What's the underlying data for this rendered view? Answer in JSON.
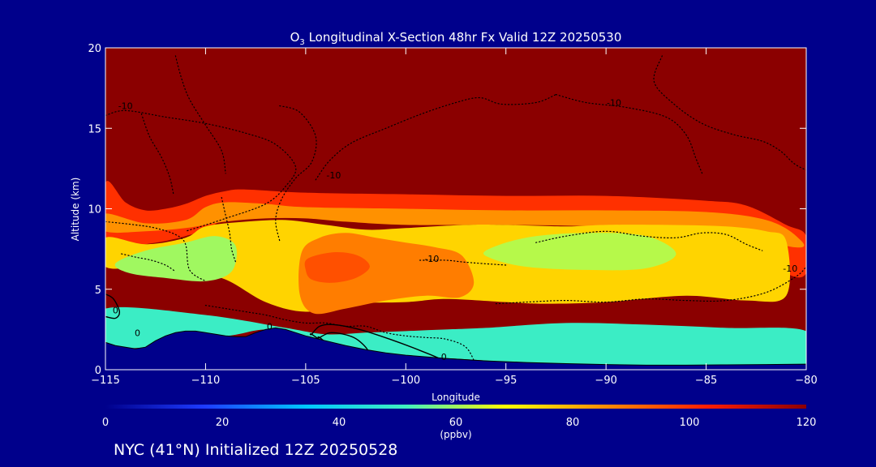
{
  "chart_data": {
    "type": "heatmap",
    "title": "O3 Longitudinal X-Section 48hr  Fx Valid 12Z 20250530",
    "title_species": "O",
    "title_subscript": "3",
    "title_rest": " Longitudinal X-Section 48hr  Fx Valid 12Z 20250530",
    "xlabel": "Longitude",
    "ylabel": "Altitude (km)",
    "xlim": [
      -115,
      -80
    ],
    "ylim": [
      0,
      20
    ],
    "xticks": [
      "-115",
      "-110",
      "-105",
      "-100",
      "-95",
      "-90",
      "-85",
      "-80"
    ],
    "xtick_values": [
      -115,
      -110,
      -105,
      -100,
      -95,
      -90,
      -85,
      -80
    ],
    "yticks": [
      "0",
      "5",
      "10",
      "15",
      "20"
    ],
    "ytick_values": [
      0,
      5,
      10,
      15,
      20
    ],
    "colorbar": {
      "ticks": [
        "0",
        "20",
        "40",
        "60",
        "80",
        "100",
        "120"
      ],
      "values": [
        0,
        20,
        40,
        60,
        80,
        100,
        120
      ],
      "unit": "(ppbv)",
      "colors": [
        "#00008b",
        "#1e3cff",
        "#00c8ff",
        "#40f0c0",
        "#ffff00",
        "#ff8c00",
        "#ff1e00",
        "#8b0000"
      ]
    },
    "background_value": 120,
    "terrain": {
      "x": [
        -115,
        -114.5,
        -114,
        -113.5,
        -113,
        -112.5,
        -112,
        -111.5,
        -111,
        -110.5,
        -110,
        -109.5,
        -109,
        -108.5,
        -108,
        -107.5,
        -107,
        -106.5,
        -106,
        -105.5,
        -105,
        -104,
        -103,
        -102,
        -101,
        -100,
        -98,
        -96,
        -94,
        -92,
        -90,
        -88,
        -86,
        -84,
        -82,
        -80
      ],
      "z": [
        1.7,
        1.5,
        1.4,
        1.3,
        1.4,
        1.8,
        2.1,
        2.3,
        2.4,
        2.4,
        2.3,
        2.2,
        2.1,
        2.05,
        2.05,
        2.3,
        2.5,
        2.6,
        2.5,
        2.3,
        2.1,
        1.8,
        1.5,
        1.25,
        1.05,
        0.9,
        0.7,
        0.55,
        0.45,
        0.38,
        0.32,
        0.28,
        0.28,
        0.3,
        0.32,
        0.35
      ]
    },
    "regions": [
      {
        "name": "tropopause-transition",
        "value": 100,
        "x": [
          -115,
          -114,
          -113,
          -112,
          -111,
          -110,
          -109,
          -108,
          -105,
          -100,
          -95,
          -90,
          -85,
          -83,
          -81,
          -80,
          -80,
          -81,
          -83,
          -85,
          -90,
          -95,
          -100,
          -105,
          -108,
          -109,
          -110,
          -111,
          -112,
          -113,
          -114,
          -115
        ],
        "y": [
          11.6,
          10.4,
          9.9,
          10.0,
          10.3,
          10.8,
          11.1,
          11.2,
          11.0,
          10.9,
          10.8,
          10.8,
          10.5,
          10.2,
          9.0,
          8.3,
          6.0,
          6.0,
          8.0,
          9.2,
          9.4,
          9.4,
          9.3,
          9.5,
          9.7,
          9.4,
          8.7,
          8.3,
          8.0,
          7.8,
          7.6,
          7.0
        ]
      },
      {
        "name": "upper-orange-band",
        "value": 85,
        "x": [
          -115,
          -113,
          -111,
          -110,
          -109,
          -107,
          -105,
          -100,
          -95,
          -90,
          -85,
          -82,
          -80.5,
          -80.5,
          -85,
          -90,
          -95,
          -100,
          -103,
          -105,
          -107,
          -109,
          -111,
          -113,
          -115
        ],
        "y": [
          9.7,
          9.1,
          9.3,
          10.1,
          10.4,
          10.3,
          10.1,
          10.0,
          9.9,
          9.9,
          9.8,
          9.3,
          8.3,
          7.6,
          8.7,
          8.9,
          9.0,
          9.0,
          9.2,
          9.4,
          9.4,
          9.2,
          8.8,
          8.6,
          8.6
        ]
      },
      {
        "name": "mid-yellow-layer",
        "value": 75,
        "x": [
          -115,
          -113,
          -111,
          -110,
          -108,
          -106,
          -104,
          -102,
          -100,
          -97,
          -95,
          -92,
          -90,
          -87,
          -84,
          -82,
          -81,
          -81,
          -83,
          -86,
          -90,
          -93,
          -95,
          -98,
          -100,
          -103,
          -105,
          -107,
          -109,
          -111,
          -113,
          -115
        ],
        "y": [
          8.2,
          7.8,
          8.2,
          8.9,
          9.2,
          9.3,
          9.0,
          8.7,
          8.8,
          9.0,
          9.0,
          8.9,
          9.0,
          9.0,
          8.9,
          8.6,
          8.0,
          4.6,
          4.3,
          4.6,
          4.2,
          4.1,
          4.2,
          4.4,
          4.2,
          4.1,
          3.6,
          4.2,
          5.6,
          6.2,
          6.4,
          6.4
        ]
      },
      {
        "name": "ozone-plume-orange",
        "value": 88,
        "x": [
          -105.2,
          -104.3,
          -103,
          -101.5,
          -100,
          -98.5,
          -97.2,
          -96.6,
          -97.3,
          -99,
          -101,
          -103,
          -104.6,
          -105.3
        ],
        "y": [
          7.3,
          8.2,
          8.5,
          8.2,
          7.9,
          7.6,
          7.1,
          5.4,
          4.5,
          4.6,
          4.3,
          3.8,
          3.5,
          4.7
        ]
      },
      {
        "name": "ozone-plume-core",
        "value": 95,
        "x": [
          -104.9,
          -103.6,
          -102.4,
          -101.8,
          -102.5,
          -103.7,
          -104.7,
          -105
        ],
        "y": [
          6.9,
          7.3,
          7.1,
          6.4,
          5.7,
          5.4,
          5.6,
          6.2
        ]
      },
      {
        "name": "green-patch-left",
        "value": 60,
        "x": [
          -114.5,
          -113,
          -111,
          -109.5,
          -108.5,
          -108.7,
          -110,
          -112,
          -113.8
        ],
        "y": [
          6.6,
          7.4,
          7.9,
          8.3,
          7.7,
          6.1,
          5.5,
          5.7,
          6.0
        ]
      },
      {
        "name": "green-patch-right",
        "value": 62,
        "x": [
          -96,
          -94,
          -91,
          -88,
          -86.5,
          -88,
          -91,
          -94,
          -95.7
        ],
        "y": [
          7.4,
          8.2,
          8.5,
          8.3,
          7.2,
          6.3,
          6.2,
          6.4,
          6.9
        ]
      },
      {
        "name": "cyan-boundary-layer",
        "value": 50,
        "x": [
          -80,
          -84,
          -88,
          -92,
          -96,
          -98,
          -100,
          -102,
          -104,
          -106,
          -110,
          -115,
          -115,
          -113,
          -111,
          -109,
          -107,
          -105,
          -103,
          -101,
          -99,
          -97,
          -95,
          -93,
          -91,
          -89,
          -87,
          -85,
          -83,
          -81,
          -80
        ],
        "y": [
          2.4,
          2.6,
          2.8,
          2.9,
          2.6,
          2.5,
          2.4,
          2.3,
          2.2,
          2.6,
          3.4,
          3.8,
          1.7,
          1.4,
          2.4,
          2.1,
          2.5,
          2.1,
          1.5,
          1.05,
          0.8,
          0.65,
          0.5,
          0.42,
          0.35,
          0.3,
          0.28,
          0.28,
          0.3,
          0.32,
          0.35
        ]
      }
    ],
    "contours": [
      {
        "level": "0",
        "style": "solid",
        "x": [
          -104.7,
          -104.3,
          -103.6,
          -102.3,
          -100.8,
          -99.3,
          -98.2,
          -98.9,
          -100.8,
          -102.6,
          -104,
          -104.7
        ],
        "y": [
          2.2,
          2.7,
          2.8,
          2.5,
          1.9,
          1.2,
          0.6,
          0.55,
          0.8,
          1.3,
          1.7,
          2.2
        ]
      },
      {
        "level": "0",
        "style": "solid",
        "x": [
          -104.3,
          -103.7,
          -102.6,
          -101.9,
          -102.3,
          -103.6,
          -104.3
        ],
        "y": [
          2.0,
          2.3,
          2.0,
          1.2,
          0.95,
          1.4,
          2.0
        ]
      },
      {
        "level": "0",
        "style": "solid",
        "x": [
          -115,
          -114.6,
          -114.3,
          -114.5,
          -115
        ],
        "y": [
          4.7,
          4.4,
          3.6,
          3.2,
          3.3
        ]
      },
      {
        "level": "-10",
        "style": "dotted",
        "x": [
          -115,
          -114,
          -112,
          -110,
          -108,
          -106.5,
          -105.5,
          -106,
          -107,
          -109,
          -111
        ],
        "y": [
          15.8,
          16.1,
          15.7,
          15.3,
          14.7,
          14.0,
          12.6,
          11.4,
          10.3,
          9.4,
          8.6
        ]
      },
      {
        "level": "-10",
        "style": "dotted",
        "x": [
          -106.3,
          -105.3,
          -104.5,
          -104.7,
          -105.5,
          -106.2,
          -106.5,
          -106.3
        ],
        "y": [
          16.4,
          16.0,
          14.5,
          12.9,
          11.9,
          10.6,
          9.3,
          8.0
        ]
      },
      {
        "level": "-10",
        "style": "dotted",
        "x": [
          -111.5,
          -111.2,
          -110.8,
          -110,
          -109.2,
          -109
        ],
        "y": [
          19.5,
          18.1,
          16.8,
          15.2,
          13.6,
          12.2
        ]
      },
      {
        "level": "-10",
        "style": "dotted",
        "x": [
          -113.2,
          -112.8,
          -112.2,
          -111.8,
          -111.6
        ],
        "y": [
          15.9,
          14.5,
          13.2,
          12.0,
          10.9
        ]
      },
      {
        "level": "-10",
        "style": "dotted",
        "x": [
          -104.5,
          -103.8,
          -102.7,
          -101,
          -99.2,
          -97.5,
          -96.3,
          -95.2,
          -93.5,
          -92.5
        ],
        "y": [
          11.8,
          13.0,
          14.1,
          15.0,
          15.9,
          16.6,
          16.9,
          16.5,
          16.6,
          17.1
        ]
      },
      {
        "level": "-10",
        "style": "dotted",
        "x": [
          -92.5,
          -91,
          -89,
          -87,
          -86,
          -85.5,
          -85.2
        ],
        "y": [
          17.1,
          16.6,
          16.3,
          15.7,
          14.6,
          13.1,
          12.2
        ]
      },
      {
        "level": "-10",
        "style": "dotted",
        "x": [
          -87.2,
          -87.6,
          -86.6,
          -85.2,
          -83.6,
          -82.2,
          -81.3,
          -80.6,
          -80
        ],
        "y": [
          19.5,
          17.9,
          16.5,
          15.3,
          14.6,
          14.2,
          13.6,
          12.8,
          12.4
        ]
      },
      {
        "level": "-10",
        "style": "dotted",
        "x": [
          -93.5,
          -92,
          -90,
          -88.2,
          -86.5,
          -85.2,
          -84,
          -83,
          -82.2
        ],
        "y": [
          7.9,
          8.3,
          8.6,
          8.3,
          8.2,
          8.5,
          8.4,
          7.8,
          7.4
        ]
      },
      {
        "level": "-10",
        "style": "dotted",
        "x": [
          -114.2,
          -113.5,
          -112.7,
          -112,
          -111.5
        ],
        "y": [
          7.2,
          7.0,
          6.8,
          6.5,
          6.1
        ]
      },
      {
        "level": "-10",
        "style": "dotted",
        "x": [
          -109.2,
          -109,
          -108.8,
          -108.7,
          -108.5
        ],
        "y": [
          10.7,
          9.6,
          8.5,
          7.5,
          6.7
        ]
      },
      {
        "level": "-10",
        "style": "dotted",
        "x": [
          -110,
          -109,
          -108,
          -107,
          -106,
          -105,
          -104,
          -103,
          -102,
          -101,
          -100,
          -99,
          -98,
          -97,
          -96.5
        ],
        "y": [
          4.0,
          3.8,
          3.6,
          3.4,
          3.1,
          2.9,
          2.9,
          2.7,
          2.7,
          2.3,
          2.1,
          2.0,
          1.9,
          1.4,
          0.3
        ]
      },
      {
        "level": "-10",
        "style": "dotted",
        "x": [
          -95.5,
          -94,
          -92,
          -90,
          -88,
          -86,
          -84,
          -82,
          -80.5,
          -80
        ],
        "y": [
          4.1,
          4.2,
          4.3,
          4.2,
          4.4,
          4.3,
          4.3,
          4.8,
          5.8,
          6.4
        ]
      },
      {
        "level": "-10",
        "style": "dotted",
        "x": [
          -115,
          -113.5,
          -112.5,
          -111.5,
          -111,
          -110.8,
          -110
        ],
        "y": [
          9.2,
          9.0,
          8.8,
          8.4,
          7.8,
          6.2,
          5.5
        ]
      },
      {
        "level": "-10",
        "style": "dotted",
        "x": [
          -99.3,
          -98,
          -97.2,
          -96.2,
          -95
        ],
        "y": [
          6.8,
          6.8,
          6.7,
          6.6,
          6.5
        ]
      }
    ],
    "contour_labels": [
      {
        "text": "-10",
        "x": -114,
        "y": 16.2
      },
      {
        "text": "-10",
        "x": -89.6,
        "y": 16.4
      },
      {
        "text": "-10",
        "x": -103.6,
        "y": 11.9
      },
      {
        "text": "-10",
        "x": -98.7,
        "y": 6.7
      },
      {
        "text": "-10",
        "x": -80.8,
        "y": 6.1
      },
      {
        "text": "0",
        "x": -114.5,
        "y": 3.5
      },
      {
        "text": "0",
        "x": -113.4,
        "y": 2.1
      },
      {
        "text": "0",
        "x": -106.8,
        "y": 2.5
      },
      {
        "text": "0",
        "x": -98.1,
        "y": 0.6
      }
    ]
  },
  "footer": {
    "text": "NYC (41°N) Initialized 12Z 20250528"
  }
}
